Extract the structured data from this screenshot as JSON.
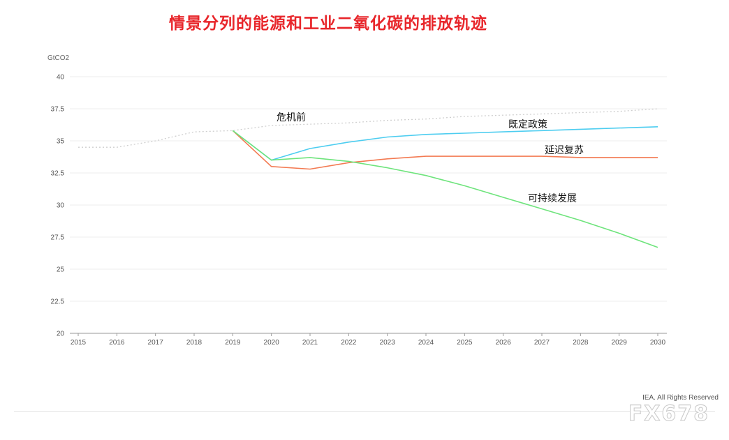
{
  "title": "情景分列的能源和工业二氧化碳的排放轨迹",
  "credit": "IEA. All Rights Reserved",
  "watermark": "FX678",
  "chart_data": {
    "type": "line",
    "ylabel": "GtCO2",
    "ylim": [
      20,
      40
    ],
    "yticks": [
      20,
      22.5,
      25,
      27.5,
      30,
      32.5,
      35,
      37.5,
      40
    ],
    "x": [
      2015,
      2016,
      2017,
      2018,
      2019,
      2020,
      2021,
      2022,
      2023,
      2024,
      2025,
      2026,
      2027,
      2028,
      2029,
      2030
    ],
    "grid": true,
    "series": [
      {
        "name": "危机前",
        "color": "#cfcfcf",
        "style": "dotted",
        "x": [
          2015,
          2016,
          2017,
          2018,
          2019,
          2020,
          2021,
          2022,
          2023,
          2024,
          2025,
          2026,
          2027,
          2028,
          2029,
          2030
        ],
        "values": [
          34.5,
          34.5,
          35.0,
          35.7,
          35.8,
          36.2,
          36.3,
          36.4,
          36.6,
          36.7,
          36.9,
          37.0,
          37.1,
          37.2,
          37.3,
          37.5
        ]
      },
      {
        "name": "既定政策",
        "color": "#4dcdf0",
        "style": "solid",
        "x": [
          2019,
          2020,
          2021,
          2022,
          2023,
          2024,
          2025,
          2026,
          2027,
          2028,
          2029,
          2030
        ],
        "values": [
          35.8,
          33.5,
          34.4,
          34.9,
          35.3,
          35.5,
          35.6,
          35.7,
          35.8,
          35.9,
          36.0,
          36.1
        ]
      },
      {
        "name": "延迟复苏",
        "color": "#f37a52",
        "style": "solid",
        "x": [
          2019,
          2020,
          2021,
          2022,
          2023,
          2024,
          2025,
          2026,
          2027,
          2028,
          2029,
          2030
        ],
        "values": [
          35.8,
          33.0,
          32.8,
          33.3,
          33.6,
          33.8,
          33.8,
          33.8,
          33.8,
          33.7,
          33.7,
          33.7
        ]
      },
      {
        "name": "可持续发展",
        "color": "#6ee47c",
        "style": "solid",
        "x": [
          2019,
          2020,
          2021,
          2022,
          2023,
          2024,
          2025,
          2026,
          2027,
          2028,
          2029,
          2030
        ],
        "values": [
          35.8,
          33.5,
          33.7,
          33.4,
          32.9,
          32.3,
          31.5,
          30.6,
          29.7,
          28.8,
          27.8,
          26.7
        ]
      }
    ]
  }
}
